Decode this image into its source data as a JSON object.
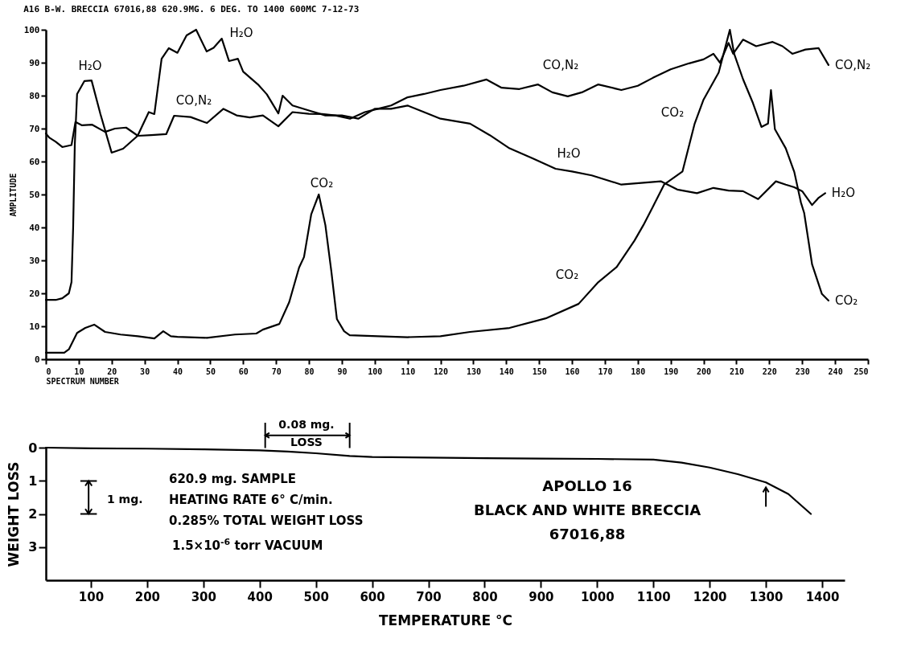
{
  "chart_data": [
    {
      "type": "line",
      "title": "A16 B-W. BRECCIA 67016,88 620.9MG. 6 DEG. TO 1400 600MC 7-12-73",
      "xlabel": "SPECTRUM NUMBER",
      "ylabel": "AMPLITUDE",
      "xlim": [
        0,
        250
      ],
      "xticks": [
        0,
        10,
        20,
        30,
        40,
        50,
        60,
        70,
        80,
        90,
        100,
        110,
        120,
        130,
        140,
        150,
        160,
        170,
        180,
        190,
        200,
        210,
        220,
        230,
        240,
        250
      ],
      "ylim": [
        0,
        100
      ],
      "yticks": [
        0,
        10,
        20,
        30,
        40,
        50,
        60,
        70,
        80,
        90,
        100
      ],
      "line_style": "solid",
      "series": [
        {
          "name": "CO,N₂",
          "color": "#000000",
          "x": [
            0,
            1,
            3,
            5,
            7.8,
            9,
            11,
            14,
            18,
            21,
            24.4,
            28,
            32,
            36.6,
            39,
            44,
            49,
            54,
            58,
            62,
            66,
            70.7,
            75,
            80,
            84,
            88,
            92.5,
            97,
            101,
            105,
            110,
            115,
            120,
            127,
            134,
            138.6,
            144,
            149.6,
            154,
            158.7,
            163,
            168,
            175,
            180,
            184.6,
            190,
            195.6,
            200,
            203,
            205,
            207.6,
            209,
            212,
            216,
            221,
            224,
            227,
            231,
            235,
            238
          ],
          "values": [
            68.5,
            67.3,
            66,
            64.4,
            65,
            72,
            71,
            71.2,
            69,
            70,
            70.3,
            67.8,
            68,
            68.3,
            73.9,
            73.5,
            71.7,
            76,
            74,
            73.4,
            74,
            70.7,
            75,
            74.5,
            74.4,
            74,
            73,
            75,
            76,
            77,
            79.5,
            80.5,
            81.7,
            83,
            84.9,
            82.4,
            82,
            83.4,
            81,
            79.8,
            81,
            83.4,
            81.7,
            83,
            85.4,
            88,
            89.8,
            91,
            92.7,
            90,
            96,
            92.7,
            97,
            95,
            96.3,
            95,
            92.7,
            94,
            94.4,
            89.3
          ]
        },
        {
          "name": "H₂O",
          "color": "#000000",
          "x": [
            0,
            3,
            5,
            7,
            7.8,
            8.3,
            8.8,
            9.5,
            11.7,
            13.9,
            16.6,
            20,
            23.5,
            27.9,
            31.3,
            33,
            35.2,
            37.4,
            40,
            42.8,
            45.7,
            48.9,
            51,
            53.5,
            55.7,
            58.4,
            60,
            64.5,
            67.2,
            70.7,
            72,
            75,
            80,
            85,
            90,
            95,
            100,
            105,
            110,
            115,
            120,
            129,
            135,
            141,
            148,
            155,
            160,
            166,
            175,
            181,
            187,
            192,
            198,
            203,
            207.6,
            212,
            216.6,
            222,
            225,
            227.6,
            230,
            233,
            235,
            237
          ],
          "values": [
            18,
            18,
            18.5,
            20,
            23.4,
            40,
            65,
            80.5,
            84.4,
            84.6,
            74.4,
            62.7,
            63.9,
            67.8,
            75,
            74.4,
            91.2,
            94.4,
            93,
            98.3,
            100,
            93.4,
            94.5,
            97.3,
            90.5,
            91.2,
            87.3,
            83.4,
            80.4,
            74.6,
            80,
            77,
            75.5,
            74,
            74,
            73,
            76,
            76,
            77,
            75,
            73,
            71.5,
            68,
            64,
            61,
            57.8,
            57,
            55.8,
            53,
            53.5,
            54,
            51.5,
            50.4,
            52,
            51.2,
            51,
            48.6,
            54,
            53,
            52.2,
            51,
            46.8,
            49,
            50.4
          ]
        },
        {
          "name": "CO₂",
          "color": "#000000",
          "x": [
            0,
            5.6,
            7,
            9.5,
            12,
            14.7,
            18,
            22.7,
            28,
            33,
            35.7,
            38,
            40,
            49,
            57.5,
            64,
            66,
            71,
            74,
            77,
            78.5,
            80.7,
            83,
            85,
            86.8,
            88.5,
            90.7,
            92.4,
            101,
            110,
            120,
            129,
            141,
            152,
            162,
            168,
            173.6,
            179,
            181.7,
            184.6,
            188,
            193.6,
            197.3,
            200,
            204.6,
            208,
            209.3,
            212,
            215,
            217.6,
            219.6,
            220.5,
            221.7,
            225,
            227.6,
            229.6,
            230.6,
            233,
            236,
            238
          ],
          "values": [
            2,
            2,
            3,
            8,
            9.5,
            10.5,
            8.3,
            7.5,
            7,
            6.3,
            8.5,
            7,
            6.8,
            6.5,
            7.5,
            7.8,
            9,
            10.7,
            17.3,
            27.8,
            31,
            44,
            50,
            40.7,
            26.8,
            12.2,
            8.5,
            7.3,
            7,
            6.7,
            7,
            8.3,
            9.5,
            12.4,
            16.8,
            23.4,
            28,
            36,
            40.7,
            46.3,
            53,
            57,
            71.5,
            78.8,
            87,
            100,
            92.7,
            85,
            77.8,
            70.5,
            71.5,
            81.7,
            69.8,
            64,
            56.8,
            47.6,
            44.4,
            28.8,
            19.8,
            17.8
          ]
        }
      ],
      "annotations": [
        "H₂O",
        "H₂O",
        "CO,N₂",
        "CO₂",
        "CO,N₂",
        "H₂O",
        "CO₂",
        "CO₂"
      ]
    },
    {
      "type": "line",
      "xlabel": "TEMPERATURE °C",
      "ylabel": "WEIGHT LOSS",
      "xlim": [
        20,
        1440
      ],
      "xticks": [
        100,
        200,
        300,
        400,
        500,
        600,
        700,
        800,
        900,
        1000,
        1100,
        1200,
        1300,
        1400
      ],
      "ylim": [
        4,
        0
      ],
      "yticks": [
        0,
        1,
        2,
        3
      ],
      "line_style": "solid",
      "series": [
        {
          "color": "#000000",
          "x": [
            20,
            100,
            200,
            300,
            400,
            450,
            500,
            560,
            600,
            700,
            800,
            900,
            1000,
            1100,
            1150,
            1200,
            1250,
            1300,
            1340,
            1380
          ],
          "values": [
            0,
            0.02,
            0.03,
            0.05,
            0.08,
            0.12,
            0.17,
            0.25,
            0.28,
            0.3,
            0.32,
            0.33,
            0.34,
            0.36,
            0.45,
            0.6,
            0.8,
            1.05,
            1.4,
            2.0
          ]
        }
      ],
      "annotations": [
        "0.08 mg.",
        "LOSS",
        "1 mg.",
        "620.9 mg. SAMPLE",
        "HEATING RATE 6° C/min.",
        "0.285% TOTAL WEIGHT LOSS",
        "1.5×10$^{-6}$ torr VACUUM",
        "APOLLO 16",
        "BLACK AND WHITE BRECCIA",
        "67016,88"
      ]
    }
  ]
}
